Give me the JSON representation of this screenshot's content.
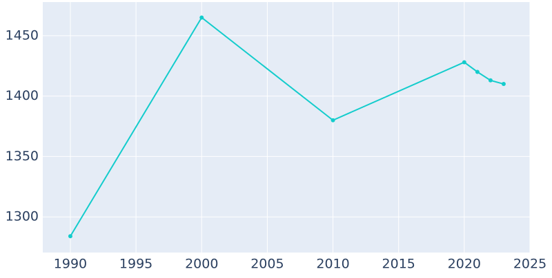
{
  "chart_data": {
    "type": "line",
    "x": [
      1990,
      2000,
      2010,
      2020,
      2021,
      2022,
      2023
    ],
    "series": [
      {
        "color": "#13cccc",
        "values": [
          1284,
          1465,
          1380,
          1428,
          1420,
          1413,
          1410
        ]
      }
    ],
    "xlim": [
      1987.9,
      2025
    ],
    "xticks": [
      1990,
      1995,
      2000,
      2005,
      2010,
      2015,
      2020,
      2025
    ],
    "ylim": [
      1270.5,
      1477.8
    ],
    "yticks": [
      1300,
      1350,
      1400,
      1450
    ],
    "grid": true
  }
}
